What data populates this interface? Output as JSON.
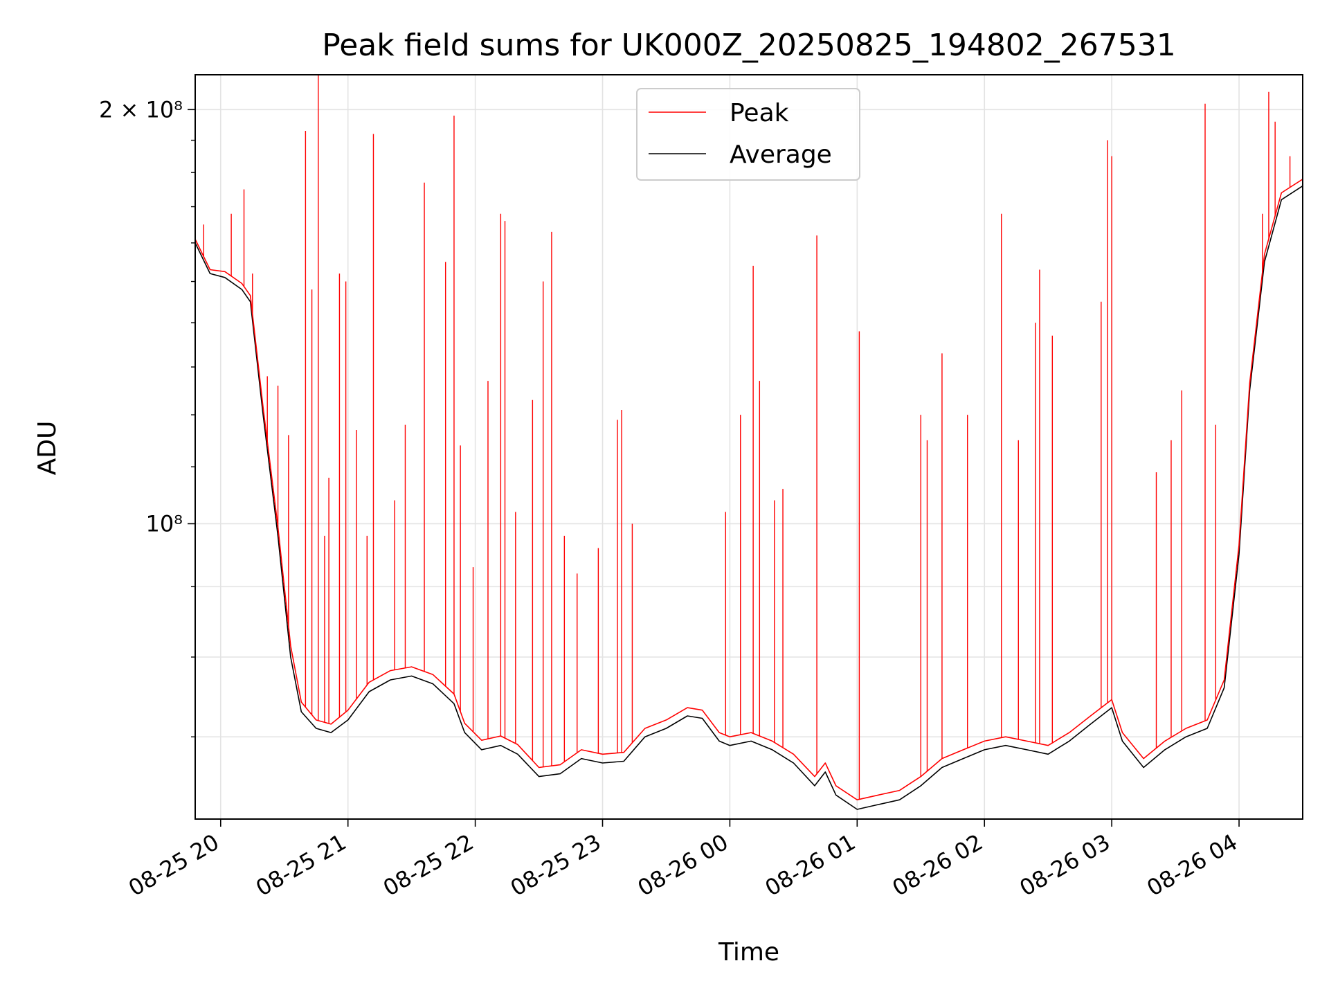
{
  "chart_data": {
    "type": "line",
    "title": "Peak field sums for UK000Z_20250825_194802_267531",
    "xlabel": "Time",
    "ylabel": "ADU",
    "y_scale": "log",
    "ylim": [
      61000000,
      212000000
    ],
    "xlim": [
      "2025-08-25 19:48",
      "2025-08-26 04:30"
    ],
    "y_ticks": [
      {
        "value": 100000000,
        "label": "10⁸"
      },
      {
        "value": 200000000,
        "label": "2 × 10⁸"
      }
    ],
    "x_ticks": [
      {
        "t": "2025-08-25 20:00",
        "label": "08-25 20"
      },
      {
        "t": "2025-08-25 21:00",
        "label": "08-25 21"
      },
      {
        "t": "2025-08-25 22:00",
        "label": "08-25 22"
      },
      {
        "t": "2025-08-25 23:00",
        "label": "08-25 23"
      },
      {
        "t": "2025-08-26 00:00",
        "label": "08-26 00"
      },
      {
        "t": "2025-08-26 01:00",
        "label": "08-26 01"
      },
      {
        "t": "2025-08-26 02:00",
        "label": "08-26 02"
      },
      {
        "t": "2025-08-26 03:00",
        "label": "08-26 03"
      },
      {
        "t": "2025-08-26 04:00",
        "label": "08-26 04"
      }
    ],
    "grid": true,
    "legend_position": "upper center",
    "series": [
      {
        "name": "Average",
        "color": "#000000",
        "points": [
          [
            "2025-08-25 19:48",
            160000000
          ],
          [
            "2025-08-25 19:55",
            152000000
          ],
          [
            "2025-08-25 20:02",
            151000000
          ],
          [
            "2025-08-25 20:10",
            148000000
          ],
          [
            "2025-08-25 20:14",
            145000000
          ],
          [
            "2025-08-25 20:20",
            120000000
          ],
          [
            "2025-08-25 20:27",
            98000000
          ],
          [
            "2025-08-25 20:33",
            80000000
          ],
          [
            "2025-08-25 20:38",
            73000000
          ],
          [
            "2025-08-25 20:45",
            71000000
          ],
          [
            "2025-08-25 20:52",
            70500000
          ],
          [
            "2025-08-25 21:00",
            72000000
          ],
          [
            "2025-08-25 21:10",
            75500000
          ],
          [
            "2025-08-25 21:20",
            77000000
          ],
          [
            "2025-08-25 21:30",
            77500000
          ],
          [
            "2025-08-25 21:40",
            76500000
          ],
          [
            "2025-08-25 21:50",
            74000000
          ],
          [
            "2025-08-25 21:55",
            70500000
          ],
          [
            "2025-08-25 22:03",
            68500000
          ],
          [
            "2025-08-25 22:12",
            69000000
          ],
          [
            "2025-08-25 22:20",
            68000000
          ],
          [
            "2025-08-25 22:30",
            65500000
          ],
          [
            "2025-08-25 22:40",
            65800000
          ],
          [
            "2025-08-25 22:50",
            67500000
          ],
          [
            "2025-08-25 23:00",
            67000000
          ],
          [
            "2025-08-25 23:10",
            67200000
          ],
          [
            "2025-08-25 23:20",
            70000000
          ],
          [
            "2025-08-25 23:30",
            71000000
          ],
          [
            "2025-08-25 23:40",
            72500000
          ],
          [
            "2025-08-25 23:47",
            72200000
          ],
          [
            "2025-08-25 23:55",
            69500000
          ],
          [
            "2025-08-26 00:00",
            69000000
          ],
          [
            "2025-08-26 00:10",
            69500000
          ],
          [
            "2025-08-26 00:20",
            68500000
          ],
          [
            "2025-08-26 00:30",
            67000000
          ],
          [
            "2025-08-26 00:40",
            64500000
          ],
          [
            "2025-08-26 00:45",
            66000000
          ],
          [
            "2025-08-26 00:50",
            63500000
          ],
          [
            "2025-08-26 01:00",
            62000000
          ],
          [
            "2025-08-26 01:10",
            62500000
          ],
          [
            "2025-08-26 01:20",
            63000000
          ],
          [
            "2025-08-26 01:30",
            64500000
          ],
          [
            "2025-08-26 01:40",
            66500000
          ],
          [
            "2025-08-26 01:50",
            67500000
          ],
          [
            "2025-08-26 02:00",
            68500000
          ],
          [
            "2025-08-26 02:10",
            69000000
          ],
          [
            "2025-08-26 02:20",
            68500000
          ],
          [
            "2025-08-26 02:30",
            68000000
          ],
          [
            "2025-08-26 02:40",
            69500000
          ],
          [
            "2025-08-26 02:50",
            71500000
          ],
          [
            "2025-08-26 03:00",
            73500000
          ],
          [
            "2025-08-26 03:05",
            69500000
          ],
          [
            "2025-08-26 03:15",
            66500000
          ],
          [
            "2025-08-26 03:25",
            68500000
          ],
          [
            "2025-08-26 03:35",
            70000000
          ],
          [
            "2025-08-26 03:45",
            71000000
          ],
          [
            "2025-08-26 03:53",
            76000000
          ],
          [
            "2025-08-26 04:00",
            95000000
          ],
          [
            "2025-08-26 04:05",
            125000000
          ],
          [
            "2025-08-26 04:12",
            155000000
          ],
          [
            "2025-08-26 04:20",
            172000000
          ],
          [
            "2025-08-26 04:30",
            176000000
          ]
        ]
      },
      {
        "name": "Peak",
        "color": "#ff0000",
        "points": [
          [
            "2025-08-25 19:48",
            161000000
          ],
          [
            "2025-08-25 19:55",
            153000000
          ],
          [
            "2025-08-25 20:02",
            152500000
          ],
          [
            "2025-08-25 20:10",
            149500000
          ],
          [
            "2025-08-25 20:14",
            146500000
          ],
          [
            "2025-08-25 20:20",
            121500000
          ],
          [
            "2025-08-25 20:27",
            99500000
          ],
          [
            "2025-08-25 20:33",
            81500000
          ],
          [
            "2025-08-25 20:38",
            74200000
          ],
          [
            "2025-08-25 20:45",
            72000000
          ],
          [
            "2025-08-25 20:52",
            71500000
          ],
          [
            "2025-08-25 21:00",
            73200000
          ],
          [
            "2025-08-25 21:10",
            76700000
          ],
          [
            "2025-08-25 21:20",
            78200000
          ],
          [
            "2025-08-25 21:30",
            78700000
          ],
          [
            "2025-08-25 21:40",
            77700000
          ],
          [
            "2025-08-25 21:50",
            75200000
          ],
          [
            "2025-08-25 21:55",
            71600000
          ],
          [
            "2025-08-25 22:03",
            69600000
          ],
          [
            "2025-08-25 22:12",
            70100000
          ],
          [
            "2025-08-25 22:20",
            69100000
          ],
          [
            "2025-08-25 22:30",
            66500000
          ],
          [
            "2025-08-25 22:40",
            66800000
          ],
          [
            "2025-08-25 22:50",
            68500000
          ],
          [
            "2025-08-25 23:00",
            68000000
          ],
          [
            "2025-08-25 23:10",
            68200000
          ],
          [
            "2025-08-25 23:20",
            71000000
          ],
          [
            "2025-08-25 23:30",
            72000000
          ],
          [
            "2025-08-25 23:40",
            73500000
          ],
          [
            "2025-08-25 23:47",
            73200000
          ],
          [
            "2025-08-25 23:55",
            70500000
          ],
          [
            "2025-08-26 00:00",
            70000000
          ],
          [
            "2025-08-26 00:10",
            70500000
          ],
          [
            "2025-08-26 00:20",
            69500000
          ],
          [
            "2025-08-26 00:30",
            68000000
          ],
          [
            "2025-08-26 00:40",
            65500000
          ],
          [
            "2025-08-26 00:45",
            67000000
          ],
          [
            "2025-08-26 00:50",
            64500000
          ],
          [
            "2025-08-26 01:00",
            63000000
          ],
          [
            "2025-08-26 01:10",
            63500000
          ],
          [
            "2025-08-26 01:20",
            64000000
          ],
          [
            "2025-08-26 01:30",
            65500000
          ],
          [
            "2025-08-26 01:40",
            67500000
          ],
          [
            "2025-08-26 01:50",
            68500000
          ],
          [
            "2025-08-26 02:00",
            69500000
          ],
          [
            "2025-08-26 02:10",
            70000000
          ],
          [
            "2025-08-26 02:20",
            69500000
          ],
          [
            "2025-08-26 02:30",
            69000000
          ],
          [
            "2025-08-26 02:40",
            70500000
          ],
          [
            "2025-08-26 02:50",
            72500000
          ],
          [
            "2025-08-26 03:00",
            74500000
          ],
          [
            "2025-08-26 03:05",
            70500000
          ],
          [
            "2025-08-26 03:15",
            67500000
          ],
          [
            "2025-08-26 03:25",
            69500000
          ],
          [
            "2025-08-26 03:35",
            71000000
          ],
          [
            "2025-08-26 03:45",
            72000000
          ],
          [
            "2025-08-26 03:53",
            77000000
          ],
          [
            "2025-08-26 04:00",
            96500000
          ],
          [
            "2025-08-26 04:05",
            126500000
          ],
          [
            "2025-08-26 04:12",
            157000000
          ],
          [
            "2025-08-26 04:20",
            174000000
          ],
          [
            "2025-08-26 04:30",
            178000000
          ]
        ],
        "spikes": [
          [
            "2025-08-25 19:52",
            165000000
          ],
          [
            "2025-08-25 20:05",
            168000000
          ],
          [
            "2025-08-25 20:11",
            175000000
          ],
          [
            "2025-08-25 20:15",
            152000000
          ],
          [
            "2025-08-25 20:22",
            128000000
          ],
          [
            "2025-08-25 20:27",
            126000000
          ],
          [
            "2025-08-25 20:32",
            116000000
          ],
          [
            "2025-08-25 20:40",
            193000000
          ],
          [
            "2025-08-25 20:43",
            148000000
          ],
          [
            "2025-08-25 20:46",
            212000000
          ],
          [
            "2025-08-25 20:49",
            98000000
          ],
          [
            "2025-08-25 20:51",
            108000000
          ],
          [
            "2025-08-25 20:56",
            152000000
          ],
          [
            "2025-08-25 20:59",
            150000000
          ],
          [
            "2025-08-25 21:04",
            117000000
          ],
          [
            "2025-08-25 21:09",
            98000000
          ],
          [
            "2025-08-25 21:12",
            192000000
          ],
          [
            "2025-08-25 21:22",
            104000000
          ],
          [
            "2025-08-25 21:27",
            118000000
          ],
          [
            "2025-08-25 21:36",
            177000000
          ],
          [
            "2025-08-25 21:46",
            155000000
          ],
          [
            "2025-08-25 21:50",
            198000000
          ],
          [
            "2025-08-25 21:53",
            114000000
          ],
          [
            "2025-08-25 21:59",
            93000000
          ],
          [
            "2025-08-25 22:06",
            127000000
          ],
          [
            "2025-08-25 22:12",
            168000000
          ],
          [
            "2025-08-25 22:14",
            166000000
          ],
          [
            "2025-08-25 22:19",
            102000000
          ],
          [
            "2025-08-25 22:27",
            123000000
          ],
          [
            "2025-08-25 22:32",
            150000000
          ],
          [
            "2025-08-25 22:36",
            163000000
          ],
          [
            "2025-08-25 22:42",
            98000000
          ],
          [
            "2025-08-25 22:48",
            92000000
          ],
          [
            "2025-08-25 22:58",
            96000000
          ],
          [
            "2025-08-25 23:07",
            119000000
          ],
          [
            "2025-08-25 23:09",
            121000000
          ],
          [
            "2025-08-25 23:14",
            100000000
          ],
          [
            "2025-08-25 23:58",
            102000000
          ],
          [
            "2025-08-26 00:05",
            120000000
          ],
          [
            "2025-08-26 00:11",
            154000000
          ],
          [
            "2025-08-26 00:14",
            127000000
          ],
          [
            "2025-08-26 00:21",
            104000000
          ],
          [
            "2025-08-26 00:25",
            106000000
          ],
          [
            "2025-08-26 00:41",
            162000000
          ],
          [
            "2025-08-26 01:01",
            138000000
          ],
          [
            "2025-08-26 01:30",
            120000000
          ],
          [
            "2025-08-26 01:33",
            115000000
          ],
          [
            "2025-08-26 01:40",
            133000000
          ],
          [
            "2025-08-26 01:52",
            120000000
          ],
          [
            "2025-08-26 02:08",
            168000000
          ],
          [
            "2025-08-26 02:16",
            115000000
          ],
          [
            "2025-08-26 02:24",
            140000000
          ],
          [
            "2025-08-26 02:26",
            153000000
          ],
          [
            "2025-08-26 02:32",
            137000000
          ],
          [
            "2025-08-26 02:55",
            145000000
          ],
          [
            "2025-08-26 02:58",
            190000000
          ],
          [
            "2025-08-26 03:00",
            185000000
          ],
          [
            "2025-08-26 03:21",
            109000000
          ],
          [
            "2025-08-26 03:28",
            115000000
          ],
          [
            "2025-08-26 03:33",
            125000000
          ],
          [
            "2025-08-26 03:44",
            202000000
          ],
          [
            "2025-08-26 03:49",
            118000000
          ],
          [
            "2025-08-26 04:11",
            168000000
          ],
          [
            "2025-08-26 04:14",
            206000000
          ],
          [
            "2025-08-26 04:17",
            196000000
          ],
          [
            "2025-08-26 04:24",
            185000000
          ]
        ]
      }
    ],
    "legend": [
      {
        "name": "Peak",
        "color": "#ff0000"
      },
      {
        "name": "Average",
        "color": "#000000"
      }
    ]
  }
}
